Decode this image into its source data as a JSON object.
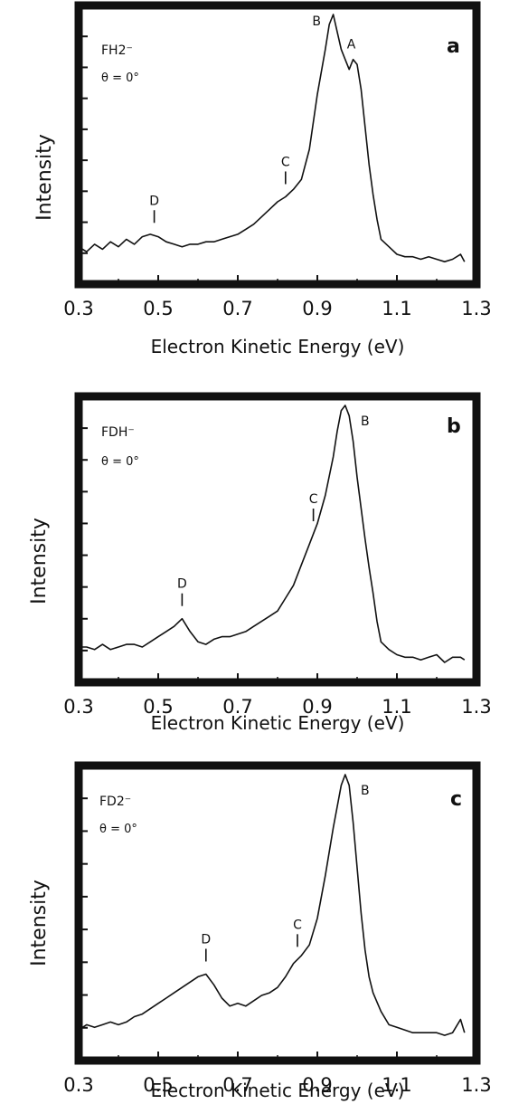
{
  "chart_data": [
    {
      "type": "line",
      "panel_label": "a",
      "species_line1": "FH2⁻",
      "species_line2": "θ = 0°",
      "xlabel": "Electron Kinetic Energy (eV)",
      "ylabel": "Intensity",
      "xlim": [
        0.3,
        1.3
      ],
      "ylim": [
        0,
        1
      ],
      "x_ticks": [
        "0.3",
        "0.5",
        "0.7",
        "0.9",
        "1.1",
        "1.3"
      ],
      "grid": false,
      "series": [
        {
          "x": [
            0.3,
            0.32,
            0.34,
            0.36,
            0.38,
            0.4,
            0.42,
            0.44,
            0.46,
            0.48,
            0.5,
            0.52,
            0.54,
            0.56,
            0.58,
            0.6,
            0.62,
            0.64,
            0.66,
            0.68,
            0.7,
            0.72,
            0.74,
            0.76,
            0.78,
            0.8,
            0.82,
            0.84,
            0.86,
            0.88,
            0.9,
            0.92,
            0.93,
            0.94,
            0.95,
            0.96,
            0.97,
            0.98,
            0.99,
            1.0,
            1.01,
            1.02,
            1.03,
            1.04,
            1.05,
            1.06,
            1.08,
            1.1,
            1.12,
            1.14,
            1.16,
            1.18,
            1.2,
            1.22,
            1.24,
            1.26,
            1.27
          ],
          "y": [
            0.07,
            0.05,
            0.08,
            0.06,
            0.09,
            0.07,
            0.1,
            0.08,
            0.11,
            0.12,
            0.11,
            0.09,
            0.08,
            0.07,
            0.08,
            0.08,
            0.09,
            0.09,
            0.1,
            0.11,
            0.12,
            0.14,
            0.16,
            0.19,
            0.22,
            0.25,
            0.27,
            0.3,
            0.34,
            0.46,
            0.68,
            0.86,
            0.96,
            1.0,
            0.93,
            0.86,
            0.82,
            0.78,
            0.82,
            0.8,
            0.7,
            0.55,
            0.4,
            0.28,
            0.18,
            0.1,
            0.07,
            0.04,
            0.03,
            0.03,
            0.02,
            0.03,
            0.02,
            0.01,
            0.02,
            0.04,
            0.01
          ]
        }
      ],
      "annotations": [
        {
          "label": "A",
          "x": 0.99
        },
        {
          "label": "B",
          "x": 0.93
        },
        {
          "label": "C",
          "x": 0.82
        },
        {
          "label": "D",
          "x": 0.49
        }
      ]
    },
    {
      "type": "line",
      "panel_label": "b",
      "species_line1": "FDH⁻",
      "species_line2": "θ = 0°",
      "xlabel": "Electron Kinetic Energy (eV)",
      "ylabel": "Intensity",
      "xlim": [
        0.3,
        1.3
      ],
      "ylim": [
        0,
        1
      ],
      "x_ticks": [
        "0.3",
        "0.5",
        "0.7",
        "0.9",
        "1.1",
        "1.3"
      ],
      "grid": false,
      "series": [
        {
          "x": [
            0.3,
            0.32,
            0.34,
            0.36,
            0.38,
            0.4,
            0.42,
            0.44,
            0.46,
            0.48,
            0.5,
            0.52,
            0.54,
            0.56,
            0.58,
            0.6,
            0.62,
            0.64,
            0.66,
            0.68,
            0.7,
            0.72,
            0.74,
            0.76,
            0.78,
            0.8,
            0.82,
            0.84,
            0.86,
            0.88,
            0.9,
            0.92,
            0.94,
            0.95,
            0.96,
            0.97,
            0.98,
            0.99,
            1.0,
            1.01,
            1.02,
            1.03,
            1.04,
            1.05,
            1.06,
            1.08,
            1.1,
            1.12,
            1.14,
            1.16,
            1.18,
            1.2,
            1.22,
            1.24,
            1.26,
            1.27
          ],
          "y": [
            0.06,
            0.06,
            0.05,
            0.07,
            0.05,
            0.06,
            0.07,
            0.07,
            0.06,
            0.08,
            0.1,
            0.12,
            0.14,
            0.17,
            0.12,
            0.08,
            0.07,
            0.09,
            0.1,
            0.1,
            0.11,
            0.12,
            0.14,
            0.16,
            0.18,
            0.2,
            0.25,
            0.3,
            0.38,
            0.46,
            0.54,
            0.65,
            0.8,
            0.9,
            0.98,
            1.0,
            0.96,
            0.86,
            0.72,
            0.6,
            0.48,
            0.37,
            0.27,
            0.16,
            0.08,
            0.05,
            0.03,
            0.02,
            0.02,
            0.01,
            0.02,
            0.03,
            0.0,
            0.02,
            0.02,
            0.01
          ]
        }
      ],
      "annotations": [
        {
          "label": "B",
          "x": 0.97
        },
        {
          "label": "C",
          "x": 0.89
        },
        {
          "label": "D",
          "x": 0.56
        }
      ]
    },
    {
      "type": "line",
      "panel_label": "c",
      "species_line1": "FD2⁻",
      "species_line2": "θ = 0°",
      "xlabel": "Electron Kinetic Energy (eV)",
      "ylabel": "Intensity",
      "xlim": [
        0.3,
        1.3
      ],
      "ylim": [
        0,
        1
      ],
      "x_ticks": [
        "0.3",
        "0.5",
        "0.7",
        "0.9",
        "1.1",
        "1.3"
      ],
      "grid": false,
      "series": [
        {
          "x": [
            0.3,
            0.32,
            0.34,
            0.36,
            0.38,
            0.4,
            0.42,
            0.44,
            0.46,
            0.48,
            0.5,
            0.52,
            0.54,
            0.56,
            0.58,
            0.6,
            0.62,
            0.64,
            0.66,
            0.68,
            0.7,
            0.72,
            0.74,
            0.76,
            0.78,
            0.8,
            0.82,
            0.84,
            0.86,
            0.88,
            0.9,
            0.92,
            0.94,
            0.96,
            0.97,
            0.98,
            0.99,
            1.0,
            1.01,
            1.02,
            1.03,
            1.04,
            1.06,
            1.08,
            1.1,
            1.12,
            1.14,
            1.16,
            1.18,
            1.2,
            1.22,
            1.24,
            1.26,
            1.27
          ],
          "y": [
            0.04,
            0.06,
            0.05,
            0.06,
            0.07,
            0.06,
            0.07,
            0.09,
            0.1,
            0.12,
            0.14,
            0.16,
            0.18,
            0.2,
            0.22,
            0.24,
            0.25,
            0.21,
            0.16,
            0.13,
            0.14,
            0.13,
            0.15,
            0.17,
            0.18,
            0.2,
            0.24,
            0.29,
            0.32,
            0.36,
            0.46,
            0.62,
            0.8,
            0.96,
            1.0,
            0.96,
            0.82,
            0.65,
            0.48,
            0.34,
            0.24,
            0.18,
            0.11,
            0.06,
            0.05,
            0.04,
            0.03,
            0.03,
            0.03,
            0.03,
            0.02,
            0.03,
            0.08,
            0.03
          ]
        }
      ],
      "annotations": [
        {
          "label": "B",
          "x": 0.97
        },
        {
          "label": "C",
          "x": 0.85
        },
        {
          "label": "D",
          "x": 0.62
        }
      ]
    }
  ]
}
